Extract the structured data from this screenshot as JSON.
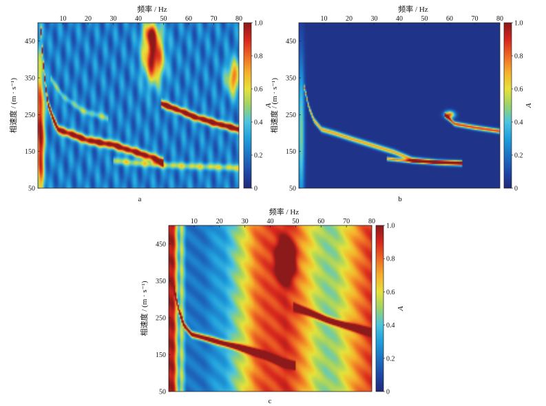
{
  "colors": {
    "colormap": [
      "#1f2a7a",
      "#1e49a8",
      "#1d73c4",
      "#1f9fdc",
      "#4cc4e0",
      "#9bd26a",
      "#e6e23a",
      "#f5b12b",
      "#ee6a25",
      "#d7261e",
      "#8c1a1a"
    ]
  },
  "chart_data": [
    {
      "type": "heatmap",
      "panel_label": "a",
      "xlabel": "频率 / Hz",
      "ylabel": "相速度 / (m · s⁻¹)",
      "xlim": [
        0,
        80
      ],
      "ylim": [
        50,
        500
      ],
      "x_ticks": [
        "10",
        "20",
        "30",
        "40",
        "50",
        "60",
        "70",
        "80"
      ],
      "y_ticks": [
        "50",
        "150",
        "250",
        "350",
        "450"
      ],
      "colorbar": {
        "label": "A",
        "range": [
          0,
          1
        ],
        "ticks": [
          "0",
          "0.2",
          "0.4",
          "0.6",
          "0.8",
          "1.0"
        ]
      },
      "background": 0.22,
      "ridges": [
        {
          "points": [
            [
              1,
              500
            ],
            [
              2,
              400
            ],
            [
              3,
              330
            ],
            [
              4,
              280
            ],
            [
              6,
              240
            ],
            [
              8,
              210
            ],
            [
              12,
              200
            ],
            [
              20,
              180
            ],
            [
              30,
              168
            ],
            [
              38,
              150
            ],
            [
              45,
              135
            ],
            [
              50,
              120
            ]
          ],
          "amplitude": 0.85,
          "width": 11
        },
        {
          "points": [
            [
              49,
              280
            ],
            [
              55,
              265
            ],
            [
              62,
              245
            ],
            [
              70,
              228
            ],
            [
              80,
              210
            ]
          ],
          "amplitude": 0.9,
          "width": 10
        },
        {
          "points": [
            [
              30,
              125
            ],
            [
              40,
              118
            ],
            [
              50,
              113
            ],
            [
              60,
              110
            ],
            [
              70,
              108
            ],
            [
              80,
              105
            ]
          ],
          "amplitude": 0.35,
          "width": 9
        },
        {
          "points": [
            [
              5,
              350
            ],
            [
              10,
              300
            ],
            [
              18,
              260
            ],
            [
              28,
              240
            ]
          ],
          "amplitude": 0.25,
          "width": 9
        }
      ],
      "blobs": [
        {
          "center": [
            46,
            405
          ],
          "radius": [
            4,
            65
          ],
          "amplitude": 0.8
        },
        {
          "center": [
            45,
            470
          ],
          "radius": [
            3,
            30
          ],
          "amplitude": 0.55
        },
        {
          "center": [
            78,
            350
          ],
          "radius": [
            3,
            45
          ],
          "amplitude": 0.55
        },
        {
          "center": [
            1,
            200
          ],
          "radius": [
            1.5,
            180
          ],
          "amplitude": 0.85
        }
      ]
    },
    {
      "type": "heatmap",
      "panel_label": "b",
      "xlabel": "频率 / Hz",
      "ylabel": "相速度 / (m · s⁻¹)",
      "xlim": [
        0,
        80
      ],
      "ylim": [
        50,
        500
      ],
      "x_ticks": [
        "10",
        "20",
        "30",
        "40",
        "50",
        "60",
        "70",
        "80"
      ],
      "y_ticks": [
        "50",
        "150",
        "250",
        "350",
        "450"
      ],
      "colorbar": {
        "label": "A",
        "range": [
          0,
          1
        ],
        "ticks": [
          "0",
          "0.2",
          "0.4",
          "0.6",
          "0.8",
          "1.0"
        ]
      },
      "background": 0.03,
      "ridges": [
        {
          "points": [
            [
              2,
              330
            ],
            [
              4,
              270
            ],
            [
              6,
              235
            ],
            [
              9,
              210
            ],
            [
              14,
              200
            ],
            [
              22,
              182
            ],
            [
              30,
              165
            ],
            [
              38,
              148
            ],
            [
              45,
              128
            ],
            [
              55,
              120
            ],
            [
              65,
              117
            ]
          ],
          "amplitude": 0.7,
          "width": 7
        },
        {
          "points": [
            [
              58,
              250
            ],
            [
              62,
              225
            ],
            [
              70,
              215
            ],
            [
              80,
              205
            ]
          ],
          "amplitude": 0.85,
          "width": 6
        },
        {
          "points": [
            [
              35,
              130
            ],
            [
              45,
              123
            ],
            [
              55,
              121
            ],
            [
              65,
              119
            ]
          ],
          "amplitude": 0.75,
          "width": 5
        }
      ],
      "blobs": [
        {
          "center": [
            60,
            250
          ],
          "radius": [
            2,
            10
          ],
          "amplitude": 0.8
        },
        {
          "center": [
            1,
            200
          ],
          "radius": [
            1.2,
            200
          ],
          "amplitude": 0.45
        }
      ]
    },
    {
      "type": "heatmap",
      "panel_label": "c",
      "xlabel": "频率 / Hz",
      "ylabel": "相速度 / (m · s⁻¹)",
      "xlim": [
        0,
        80
      ],
      "ylim": [
        50,
        500
      ],
      "x_ticks": [
        "10",
        "20",
        "30",
        "40",
        "50",
        "60",
        "70",
        "80"
      ],
      "y_ticks": [
        "50",
        "150",
        "250",
        "350",
        "450"
      ],
      "colorbar": {
        "label": "A",
        "range": [
          0,
          1
        ],
        "ticks": [
          "0",
          "0.2",
          "0.4",
          "0.6",
          "0.8",
          "1.0"
        ]
      },
      "column_profile": [
        [
          0,
          0.96
        ],
        [
          2,
          0.96
        ],
        [
          4,
          0.3
        ],
        [
          5,
          0.6
        ],
        [
          7,
          0.2
        ],
        [
          10,
          0.2
        ],
        [
          14,
          0.2
        ],
        [
          18,
          0.28
        ],
        [
          22,
          0.3
        ],
        [
          26,
          0.45
        ],
        [
          30,
          0.6
        ],
        [
          34,
          0.78
        ],
        [
          38,
          0.85
        ],
        [
          42,
          0.86
        ],
        [
          46,
          0.9
        ],
        [
          50,
          0.82
        ],
        [
          54,
          0.7
        ],
        [
          58,
          0.55
        ],
        [
          62,
          0.48
        ],
        [
          66,
          0.5
        ],
        [
          70,
          0.62
        ],
        [
          74,
          0.75
        ],
        [
          78,
          0.85
        ],
        [
          80,
          0.88
        ]
      ],
      "ridges": [
        {
          "points": [
            [
              2,
              330
            ],
            [
              4,
              270
            ],
            [
              6,
              230
            ],
            [
              9,
              205
            ],
            [
              14,
              195
            ],
            [
              22,
              180
            ],
            [
              30,
              165
            ],
            [
              38,
              148
            ],
            [
              45,
              128
            ],
            [
              50,
              120
            ]
          ],
          "amplitude": 0.95,
          "width": 8
        },
        {
          "points": [
            [
              49,
              280
            ],
            [
              55,
              265
            ],
            [
              62,
              245
            ],
            [
              70,
              228
            ],
            [
              80,
              210
            ]
          ],
          "amplitude": 0.95,
          "width": 8
        }
      ],
      "blobs": [
        {
          "center": [
            46,
            405
          ],
          "radius": [
            3,
            45
          ],
          "amplitude": 0.95
        }
      ]
    }
  ]
}
